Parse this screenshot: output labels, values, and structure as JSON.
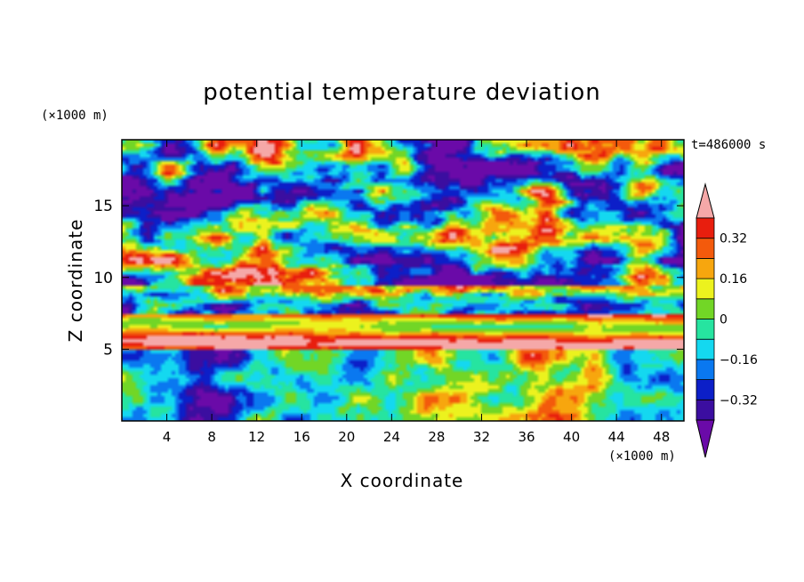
{
  "chart_data": {
    "type": "heatmap",
    "title": "potential temperature deviation",
    "xlabel": "X coordinate",
    "ylabel": "Z coordinate",
    "x_unit": "(×1000 m)",
    "y_unit": "(×1000 m)",
    "time_label": "t=486000 s",
    "xlim": [
      0,
      50
    ],
    "ylim": [
      0,
      19.6
    ],
    "x_ticks": [
      4,
      8,
      12,
      16,
      20,
      24,
      28,
      32,
      36,
      40,
      44,
      48
    ],
    "y_ticks": [
      5,
      10,
      15
    ],
    "colorbar": {
      "min": -0.4,
      "max": 0.4,
      "step": 0.08,
      "tick_values": [
        0.32,
        0.16,
        0,
        -0.16,
        -0.32
      ],
      "tick_labels": [
        "0.32",
        "0.16",
        "0",
        "−0.16",
        "−0.32"
      ],
      "colors": [
        "#6a0aa8",
        "#3b0ea0",
        "#0c1fc8",
        "#0a78f0",
        "#14d8f0",
        "#26e4a0",
        "#72d626",
        "#ecf21e",
        "#f7a60e",
        "#f35a0c",
        "#e81e0e",
        "#f5a8a8"
      ]
    }
  }
}
